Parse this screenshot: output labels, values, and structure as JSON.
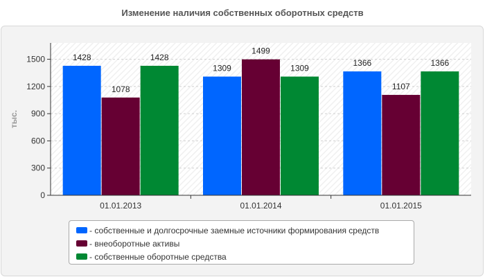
{
  "chart_data": {
    "type": "bar",
    "title": "Изменение наличия собственных оборотных средств",
    "ylabel": "тыс.",
    "xlabel": "",
    "categories": [
      "01.01.2013",
      "01.01.2014",
      "01.01.2015"
    ],
    "series": [
      {
        "name": "- собственные и долгосрочные заемные источники формирования средств",
        "color": "#0066ff",
        "values": [
          1428,
          1309,
          1366
        ]
      },
      {
        "name": "- внеоборотные активы",
        "color": "#660033",
        "values": [
          1078,
          1499,
          1107
        ]
      },
      {
        "name": "- собственные оборотные средства",
        "color": "#008833",
        "values": [
          1428,
          1309,
          1366
        ]
      }
    ],
    "ylim": [
      0,
      1680
    ],
    "yticks": [
      0,
      300,
      600,
      900,
      1200,
      1500
    ],
    "grid": true,
    "legend_position": "bottom"
  }
}
